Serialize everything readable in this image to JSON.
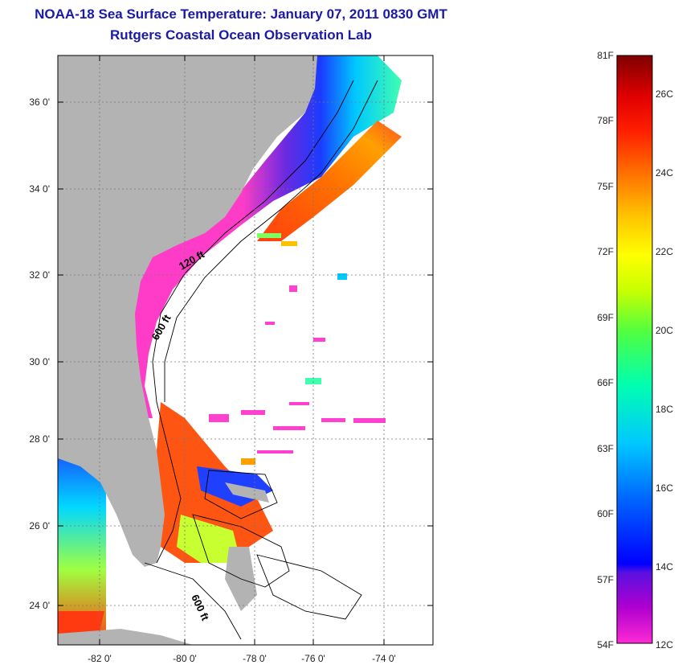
{
  "header": {
    "title": "NOAA-18 Sea Surface Temperature:  January 07, 2011 0830 GMT",
    "subtitle": "Rutgers Coastal Ocean Observation Lab"
  },
  "map": {
    "x_ticks": [
      "-82 0'",
      "-80 0'",
      "-78 0'",
      "-76 0'",
      "-74 0'"
    ],
    "y_ticks": [
      "36 0'",
      "34 0'",
      "32 0'",
      "30 0'",
      "28 0'",
      "26 0'",
      "24 0'"
    ],
    "contour_labels": [
      "120 ft",
      "600 ft",
      "600 ft"
    ],
    "colors": {
      "land": "#b3b3b3",
      "cloud": "#ffffff",
      "cold": "#ff3cc8",
      "warm": "#ff4a10"
    }
  },
  "colorbar": {
    "fahrenheit": [
      "81F",
      "78F",
      "75F",
      "72F",
      "69F",
      "66F",
      "63F",
      "60F",
      "57F",
      "54F"
    ],
    "celsius": [
      "26C",
      "24C",
      "22C",
      "20C",
      "18C",
      "16C",
      "14C",
      "12C"
    ]
  }
}
